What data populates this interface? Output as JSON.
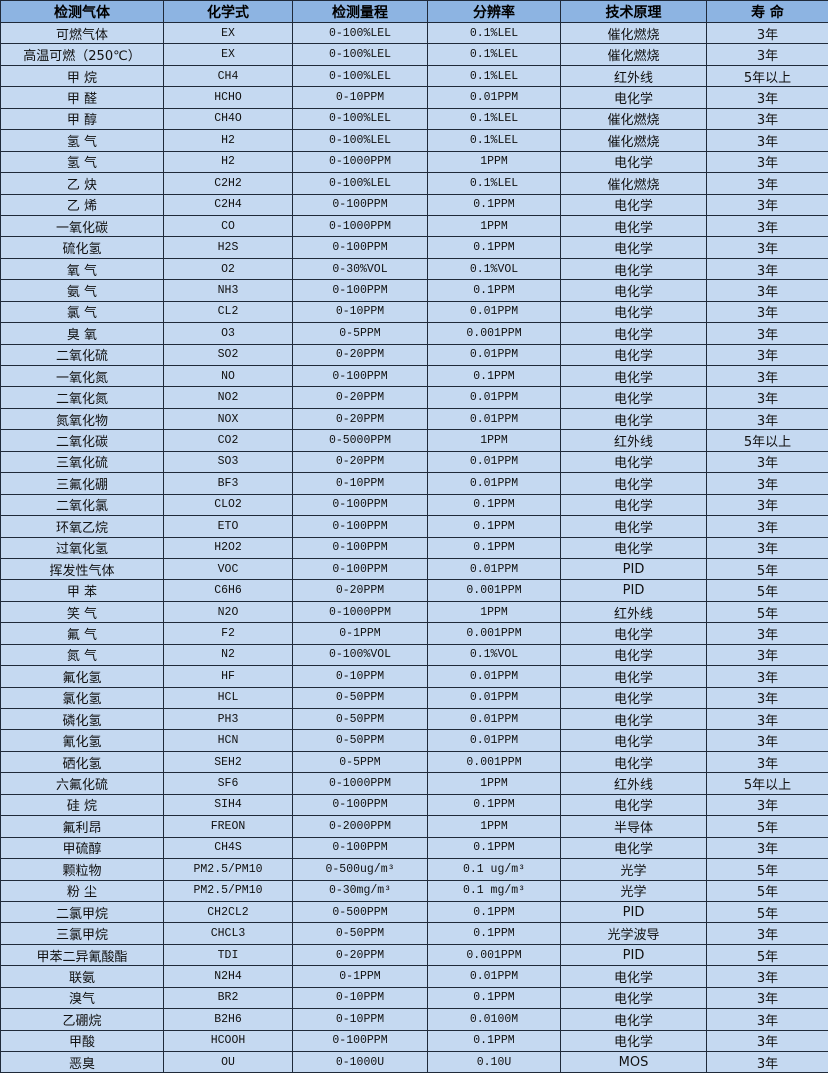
{
  "table": {
    "headers": [
      "检测气体",
      "化学式",
      "检测量程",
      "分辨率",
      "技术原理",
      "寿 命"
    ],
    "rows": [
      [
        "可燃气体",
        "EX",
        "0-100%LEL",
        "0.1%LEL",
        "催化燃烧",
        "3年"
      ],
      [
        "高温可燃（250℃）",
        "EX",
        "0-100%LEL",
        "0.1%LEL",
        "催化燃烧",
        "3年"
      ],
      [
        "甲 烷",
        "CH4",
        "0-100%LEL",
        "0.1%LEL",
        "红外线",
        "5年以上"
      ],
      [
        "甲 醛",
        "HCHO",
        "0-10PPM",
        "0.01PPM",
        "电化学",
        "3年"
      ],
      [
        "甲 醇",
        "CH4O",
        "0-100%LEL",
        "0.1%LEL",
        "催化燃烧",
        "3年"
      ],
      [
        "氢 气",
        "H2",
        "0-100%LEL",
        "0.1%LEL",
        "催化燃烧",
        "3年"
      ],
      [
        "氢 气",
        "H2",
        "0-1000PPM",
        "1PPM",
        "电化学",
        "3年"
      ],
      [
        "乙 炔",
        "C2H2",
        "0-100%LEL",
        "0.1%LEL",
        "催化燃烧",
        "3年"
      ],
      [
        "乙 烯",
        "C2H4",
        "0-100PPM",
        "0.1PPM",
        "电化学",
        "3年"
      ],
      [
        "一氧化碳",
        "CO",
        "0-1000PPM",
        "1PPM",
        "电化学",
        "3年"
      ],
      [
        "硫化氢",
        "H2S",
        "0-100PPM",
        "0.1PPM",
        "电化学",
        "3年"
      ],
      [
        "氧 气",
        "O2",
        "0-30%VOL",
        "0.1%VOL",
        "电化学",
        "3年"
      ],
      [
        "氨 气",
        "NH3",
        "0-100PPM",
        "0.1PPM",
        "电化学",
        "3年"
      ],
      [
        "氯 气",
        "CL2",
        "0-10PPM",
        "0.01PPM",
        "电化学",
        "3年"
      ],
      [
        "臭 氧",
        "O3",
        "0-5PPM",
        "0.001PPM",
        "电化学",
        "3年"
      ],
      [
        "二氧化硫",
        "SO2",
        "0-20PPM",
        "0.01PPM",
        "电化学",
        "3年"
      ],
      [
        "一氧化氮",
        "NO",
        "0-100PPM",
        "0.1PPM",
        "电化学",
        "3年"
      ],
      [
        "二氧化氮",
        "NO2",
        "0-20PPM",
        "0.01PPM",
        "电化学",
        "3年"
      ],
      [
        "氮氧化物",
        "NOX",
        "0-20PPM",
        "0.01PPM",
        "电化学",
        "3年"
      ],
      [
        "二氧化碳",
        "CO2",
        "0-5000PPM",
        "1PPM",
        "红外线",
        "5年以上"
      ],
      [
        "三氧化硫",
        "SO3",
        "0-20PPM",
        "0.01PPM",
        "电化学",
        "3年"
      ],
      [
        "三氟化硼",
        "BF3",
        "0-10PPM",
        "0.01PPM",
        "电化学",
        "3年"
      ],
      [
        "二氧化氯",
        "CLO2",
        "0-100PPM",
        "0.1PPM",
        "电化学",
        "3年"
      ],
      [
        "环氧乙烷",
        "ETO",
        "0-100PPM",
        "0.1PPM",
        "电化学",
        "3年"
      ],
      [
        "过氧化氢",
        "H2O2",
        "0-100PPM",
        "0.1PPM",
        "电化学",
        "3年"
      ],
      [
        "挥发性气体",
        "VOC",
        "0-100PPM",
        "0.01PPM",
        "PID",
        "5年"
      ],
      [
        "甲 苯",
        "C6H6",
        "0-20PPM",
        "0.001PPM",
        "PID",
        "5年"
      ],
      [
        "笑 气",
        "N2O",
        "0-1000PPM",
        "1PPM",
        "红外线",
        "5年"
      ],
      [
        "氟 气",
        "F2",
        "0-1PPM",
        "0.001PPM",
        "电化学",
        "3年"
      ],
      [
        "氮 气",
        "N2",
        "0-100%VOL",
        "0.1%VOL",
        "电化学",
        "3年"
      ],
      [
        "氟化氢",
        "HF",
        "0-10PPM",
        "0.01PPM",
        "电化学",
        "3年"
      ],
      [
        "氯化氢",
        "HCL",
        "0-50PPM",
        "0.01PPM",
        "电化学",
        "3年"
      ],
      [
        "磷化氢",
        "PH3",
        "0-50PPM",
        "0.01PPM",
        "电化学",
        "3年"
      ],
      [
        "氰化氢",
        "HCN",
        "0-50PPM",
        "0.01PPM",
        "电化学",
        "3年"
      ],
      [
        "硒化氢",
        "SEH2",
        "0-5PPM",
        "0.001PPM",
        "电化学",
        "3年"
      ],
      [
        "六氟化硫",
        "SF6",
        "0-1000PPM",
        "1PPM",
        "红外线",
        "5年以上"
      ],
      [
        "硅 烷",
        "SIH4",
        "0-100PPM",
        "0.1PPM",
        "电化学",
        "3年"
      ],
      [
        "氟利昂",
        "FREON",
        "0-2000PPM",
        "1PPM",
        "半导体",
        "5年"
      ],
      [
        "甲硫醇",
        "CH4S",
        "0-100PPM",
        "0.1PPM",
        "电化学",
        "3年"
      ],
      [
        "颗粒物",
        "PM2.5/PM10",
        "0-500ug/m³",
        "0.1 ug/m³",
        "光学",
        "5年"
      ],
      [
        "粉 尘",
        "PM2.5/PM10",
        "0-30mg/m³",
        "0.1 mg/m³",
        "光学",
        "5年"
      ],
      [
        "二氯甲烷",
        "CH2CL2",
        "0-500PPM",
        "0.1PPM",
        "PID",
        "5年"
      ],
      [
        "三氯甲烷",
        "CHCL3",
        "0-50PPM",
        "0.1PPM",
        "光学波导",
        "3年"
      ],
      [
        "甲苯二异氰酸酯",
        "TDI",
        "0-20PPM",
        "0.001PPM",
        "PID",
        "5年"
      ],
      [
        "联氨",
        "N2H4",
        "0-1PPM",
        "0.01PPM",
        "电化学",
        "3年"
      ],
      [
        "溴气",
        "BR2",
        "0-10PPM",
        "0.1PPM",
        "电化学",
        "3年"
      ],
      [
        "乙硼烷",
        "B2H6",
        "0-10PPM",
        "0.0100M",
        "电化学",
        "3年"
      ],
      [
        "甲酸",
        "HCOOH",
        "0-100PPM",
        "0.1PPM",
        "电化学",
        "3年"
      ],
      [
        "恶臭",
        "OU",
        "0-1000U",
        "0.10U",
        "MOS",
        "3年"
      ]
    ]
  }
}
